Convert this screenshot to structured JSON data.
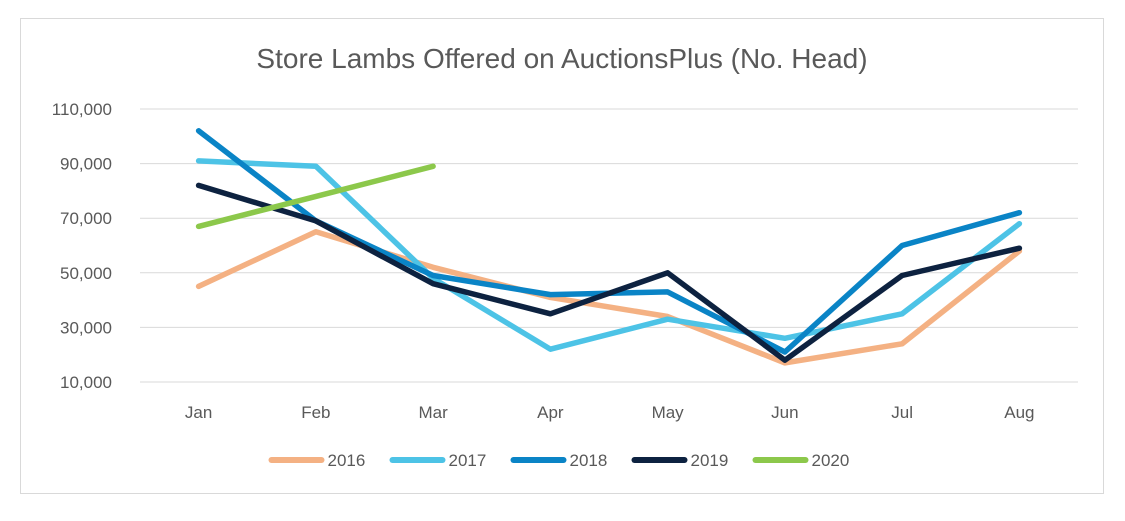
{
  "chart_data": {
    "type": "line",
    "title": "Store Lambs Offered on AuctionsPlus (No. Head)",
    "xlabel": "",
    "ylabel": "",
    "categories": [
      "Jan",
      "Feb",
      "Mar",
      "Apr",
      "May",
      "Jun",
      "Jul",
      "Aug"
    ],
    "ylim": [
      10000,
      110000
    ],
    "yticks": [
      10000,
      30000,
      50000,
      70000,
      90000,
      110000
    ],
    "ytick_labels": [
      "10,000",
      "30,000",
      "50,000",
      "70,000",
      "90,000",
      "110,000"
    ],
    "grid": true,
    "legend_position": "bottom",
    "series": [
      {
        "name": "2016",
        "color": "#f4b183",
        "values": [
          45000,
          65000,
          52000,
          41000,
          34000,
          17000,
          24000,
          58000
        ]
      },
      {
        "name": "2017",
        "color": "#4dc3e6",
        "values": [
          91000,
          89000,
          48000,
          22000,
          33000,
          26000,
          35000,
          68000
        ]
      },
      {
        "name": "2018",
        "color": "#0a84c6",
        "values": [
          102000,
          69000,
          49000,
          42000,
          43000,
          21000,
          60000,
          72000
        ]
      },
      {
        "name": "2019",
        "color": "#0d2240",
        "values": [
          82000,
          69000,
          46000,
          35000,
          50000,
          18000,
          49000,
          59000
        ]
      },
      {
        "name": "2020",
        "color": "#8cc84b",
        "values": [
          67000,
          78000,
          89000,
          null,
          null,
          null,
          null,
          null
        ]
      }
    ]
  }
}
